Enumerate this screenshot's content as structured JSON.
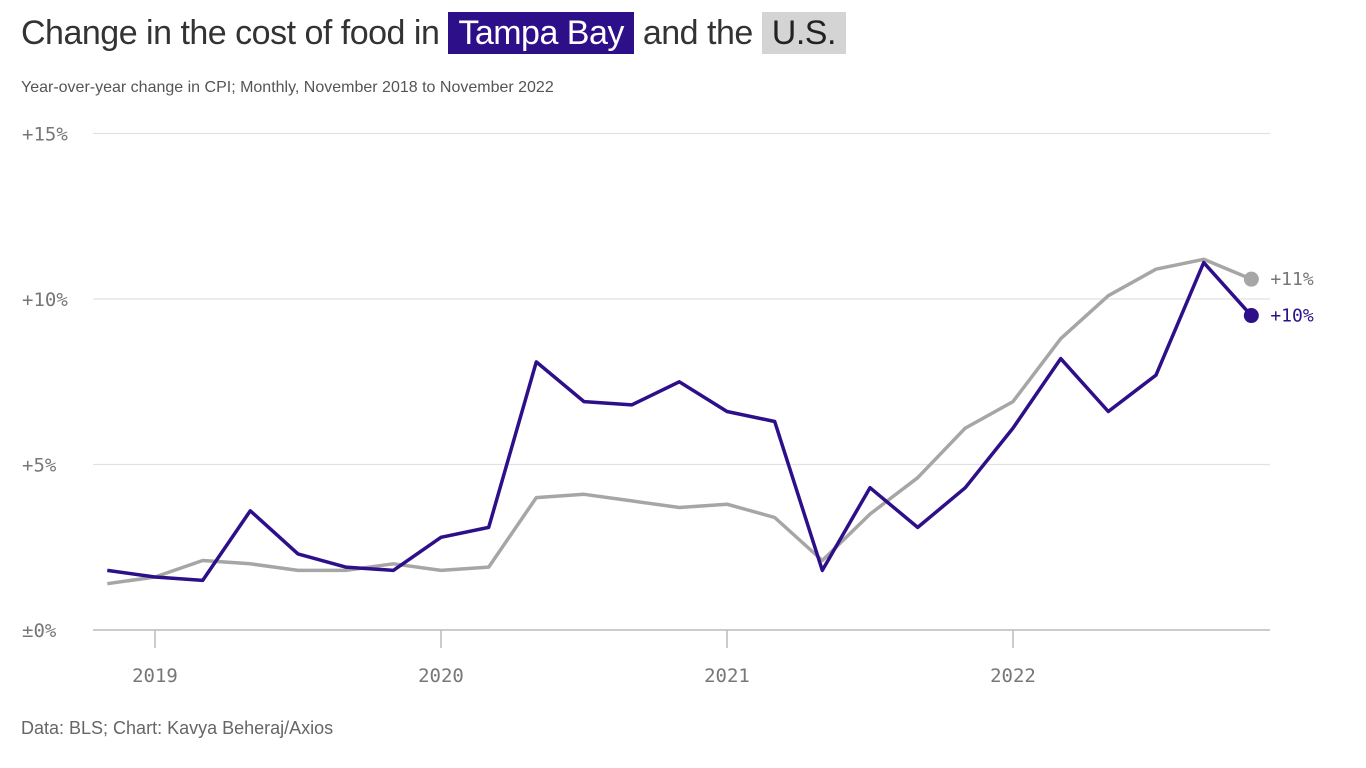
{
  "title": {
    "prefix": "Change in the cost of food in",
    "highlight1": "Tampa Bay",
    "middle": "and the",
    "highlight2": "U.S."
  },
  "subtitle": "Year-over-year change in CPI; Monthly, November 2018 to November 2022",
  "source": "Data: BLS; Chart: Kavya Beheraj/Axios",
  "colors": {
    "tampa": "#2e0f8a",
    "us": "#a6a6a6",
    "grid": "#e2e2e2",
    "axis": "#bbbbbb"
  },
  "chart_data": {
    "type": "line",
    "title": "Change in the cost of food in Tampa Bay and the U.S.",
    "x": [
      "2018-11",
      "2019-01",
      "2019-03",
      "2019-05",
      "2019-07",
      "2019-09",
      "2019-11",
      "2020-01",
      "2020-03",
      "2020-05",
      "2020-07",
      "2020-09",
      "2020-11",
      "2021-01",
      "2021-03",
      "2021-05",
      "2021-07",
      "2021-09",
      "2021-11",
      "2022-01",
      "2022-03",
      "2022-05",
      "2022-07",
      "2022-09",
      "2022-11"
    ],
    "series": [
      {
        "name": "Tampa Bay",
        "color": "#2e0f8a",
        "end_label": "+10%",
        "values": [
          1.8,
          1.6,
          1.5,
          3.6,
          2.3,
          1.9,
          1.8,
          2.8,
          3.1,
          8.1,
          6.9,
          6.8,
          7.5,
          6.6,
          6.3,
          1.8,
          4.3,
          3.1,
          4.3,
          6.1,
          8.2,
          6.6,
          7.7,
          11.1,
          9.5
        ]
      },
      {
        "name": "U.S.",
        "color": "#a6a6a6",
        "end_label": "+11%",
        "values": [
          1.4,
          1.6,
          2.1,
          2.0,
          1.8,
          1.8,
          2.0,
          1.8,
          1.9,
          4.0,
          4.1,
          3.9,
          3.7,
          3.8,
          3.4,
          2.1,
          3.5,
          4.6,
          6.1,
          6.9,
          8.8,
          10.1,
          10.9,
          11.2,
          10.6
        ]
      }
    ],
    "y_ticks": [
      {
        "value": 0,
        "label": "±0%"
      },
      {
        "value": 5,
        "label": "+5%"
      },
      {
        "value": 10,
        "label": "+10%"
      },
      {
        "value": 15,
        "label": "+15%"
      }
    ],
    "x_ticks": [
      {
        "value": "2019-01",
        "label": "2019"
      },
      {
        "value": "2020-01",
        "label": "2020"
      },
      {
        "value": "2021-01",
        "label": "2021"
      },
      {
        "value": "2022-01",
        "label": "2022"
      }
    ],
    "ylim": [
      0,
      15
    ],
    "xlabel": "",
    "ylabel": "",
    "grid": true,
    "legend": "inline-title"
  }
}
